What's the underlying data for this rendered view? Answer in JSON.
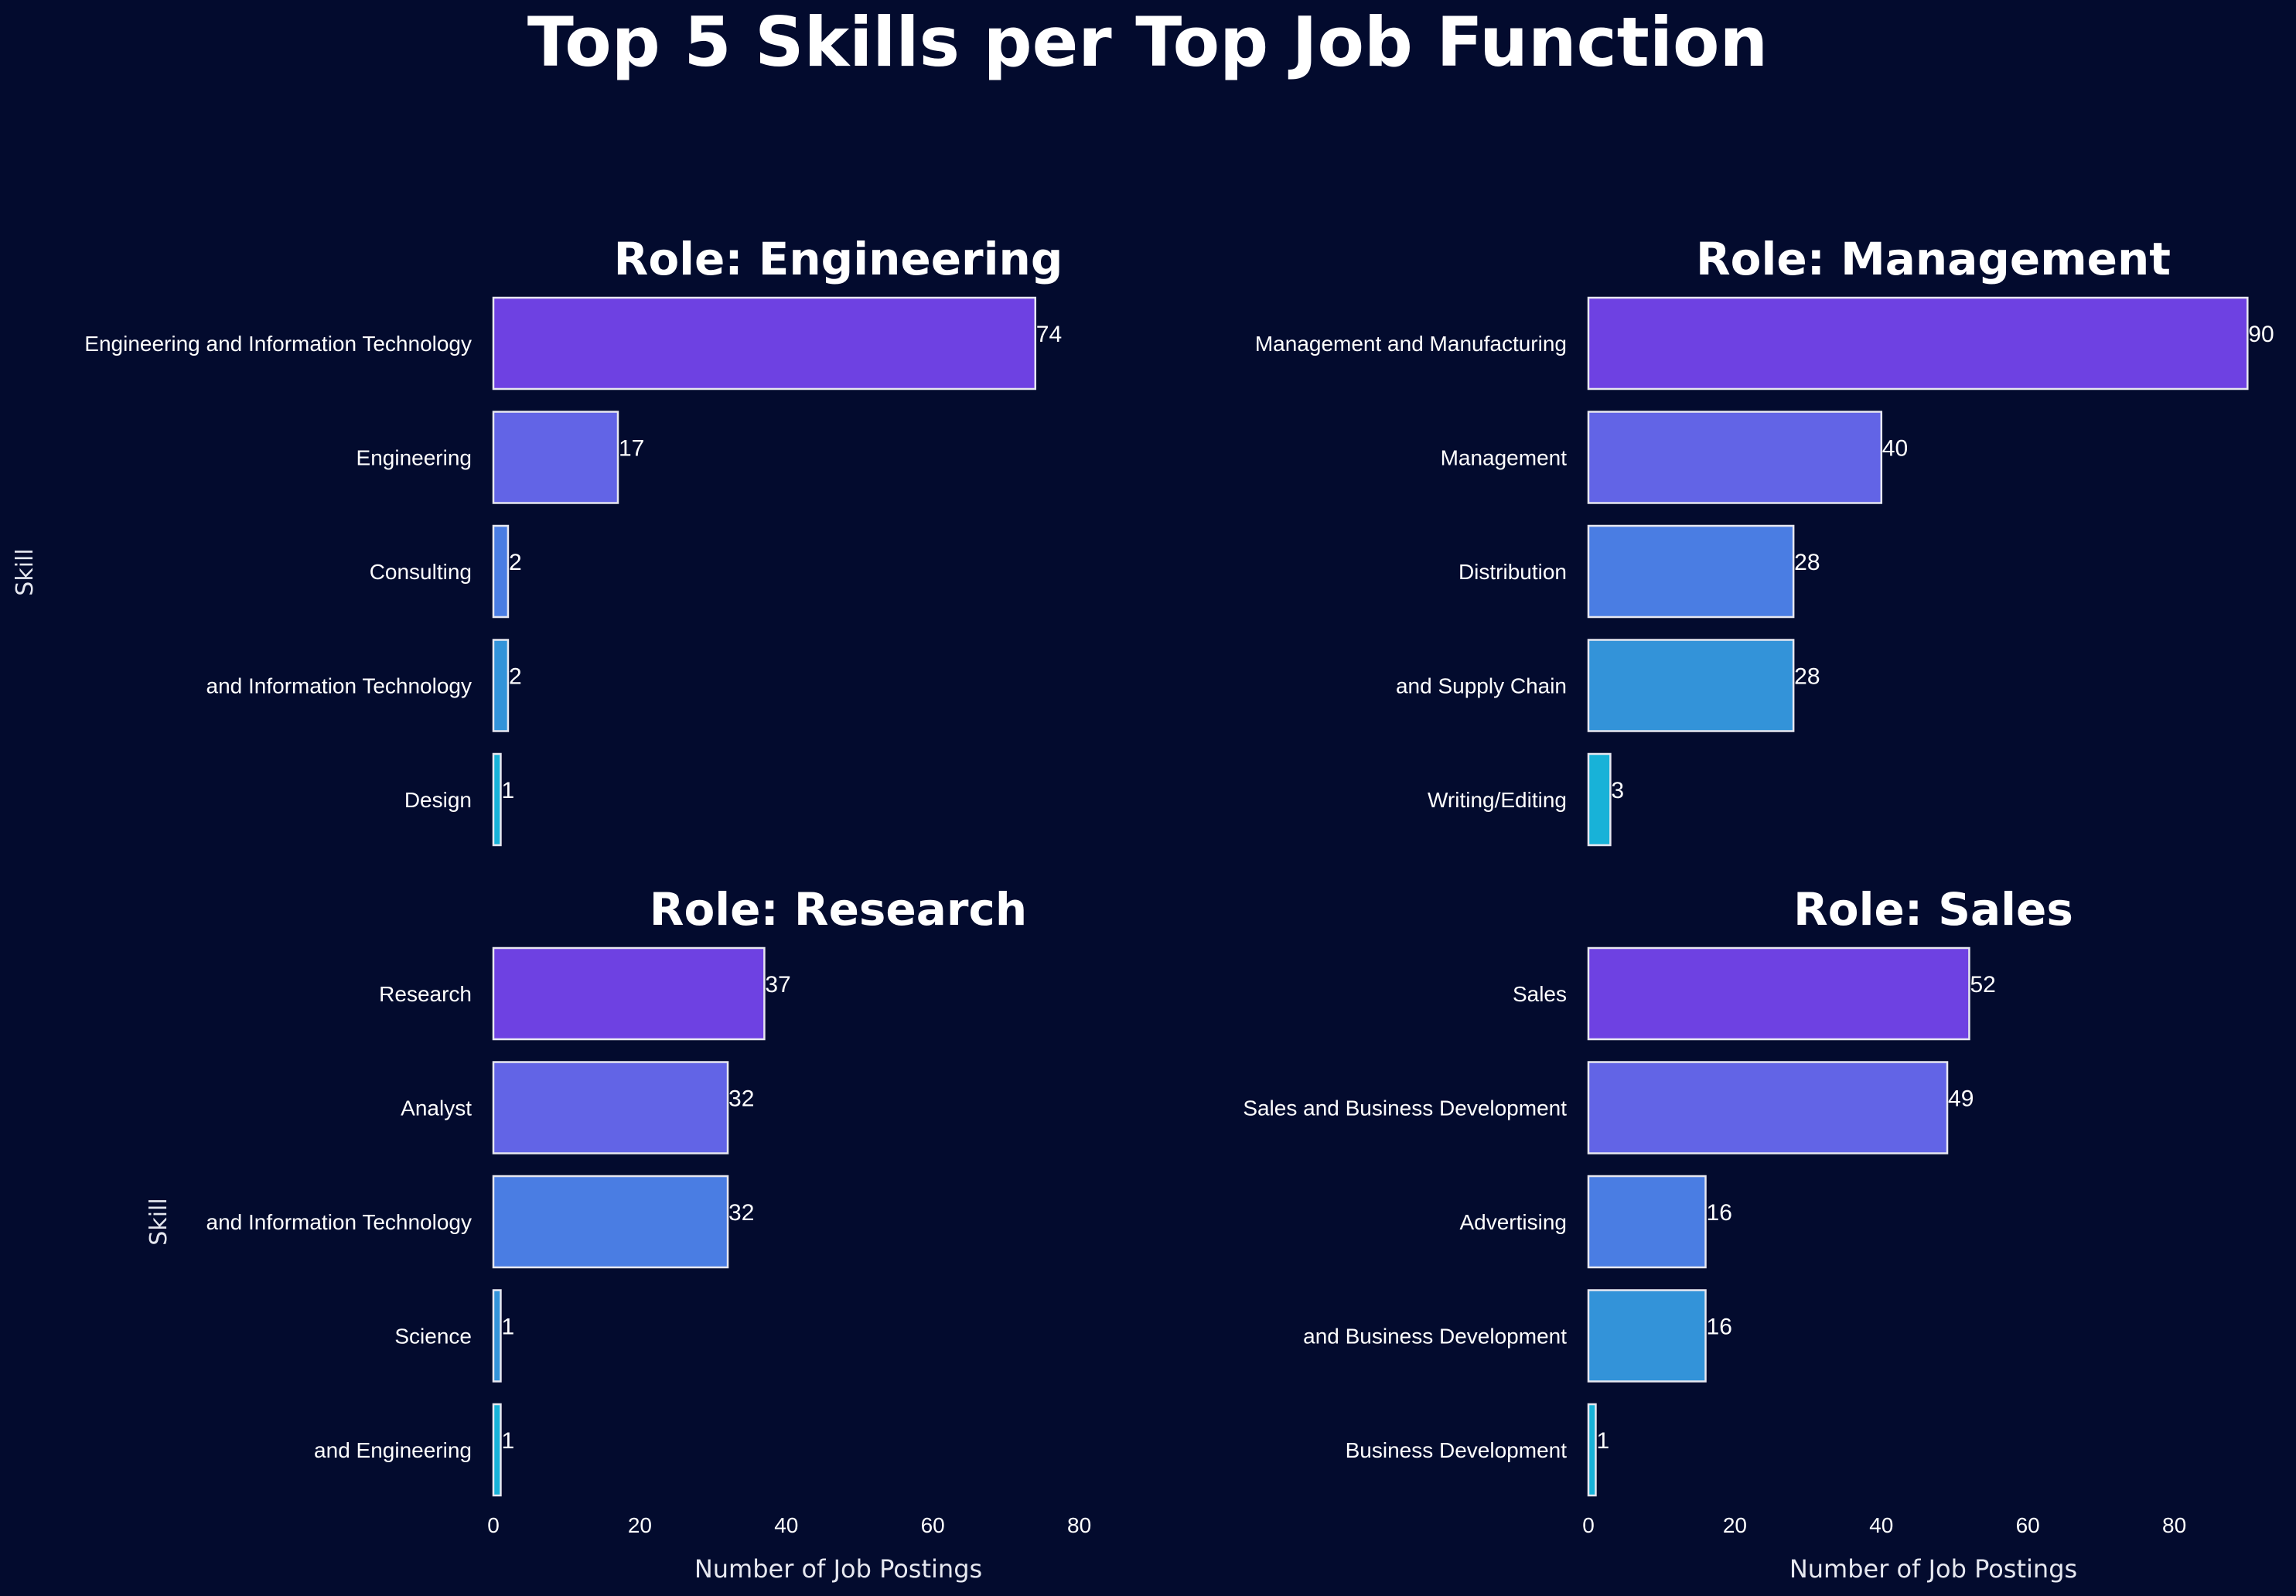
{
  "figure_title": "Top 5 Skills per Top Job Function",
  "colors": {
    "background": "#030b2e",
    "bar_edge": "#e8e8f0",
    "rank": [
      "#6e41e2",
      "#6264e6",
      "#4a7de3",
      "#3393d9",
      "#18b2d8"
    ]
  },
  "chart_data": [
    {
      "type": "bar",
      "orientation": "horizontal",
      "title": "Role: Engineering",
      "ylabel": "Skill",
      "xlabel": "",
      "categories": [
        "Engineering and Information Technology",
        "Engineering",
        "Consulting",
        "and Information Technology",
        "Design"
      ],
      "values": [
        74,
        17,
        2,
        2,
        1
      ],
      "xlim": [
        0,
        90
      ],
      "xticks": [],
      "grid": false
    },
    {
      "type": "bar",
      "orientation": "horizontal",
      "title": "Role: Management",
      "ylabel": "",
      "xlabel": "",
      "categories": [
        "Management and Manufacturing",
        "Management",
        "Distribution",
        "and Supply Chain",
        "Writing/Editing"
      ],
      "values": [
        90,
        40,
        28,
        28,
        3
      ],
      "xlim": [
        0,
        90
      ],
      "xticks": [],
      "grid": false
    },
    {
      "type": "bar",
      "orientation": "horizontal",
      "title": "Role: Research",
      "ylabel": "Skill",
      "xlabel": "Number of Job Postings",
      "categories": [
        "Research",
        "Analyst",
        "and Information Technology",
        "Science",
        "and Engineering"
      ],
      "values": [
        37,
        32,
        32,
        1,
        1
      ],
      "xlim": [
        0,
        90
      ],
      "xticks": [
        0,
        20,
        40,
        60,
        80
      ],
      "grid": false
    },
    {
      "type": "bar",
      "orientation": "horizontal",
      "title": "Role: Sales",
      "ylabel": "",
      "xlabel": "Number of Job Postings",
      "categories": [
        "Sales",
        "Sales and Business Development",
        "Advertising",
        "and Business Development",
        "Business Development"
      ],
      "values": [
        52,
        49,
        16,
        16,
        1
      ],
      "xlim": [
        0,
        90
      ],
      "xticks": [
        0,
        20,
        40,
        60,
        80
      ],
      "grid": false
    }
  ]
}
